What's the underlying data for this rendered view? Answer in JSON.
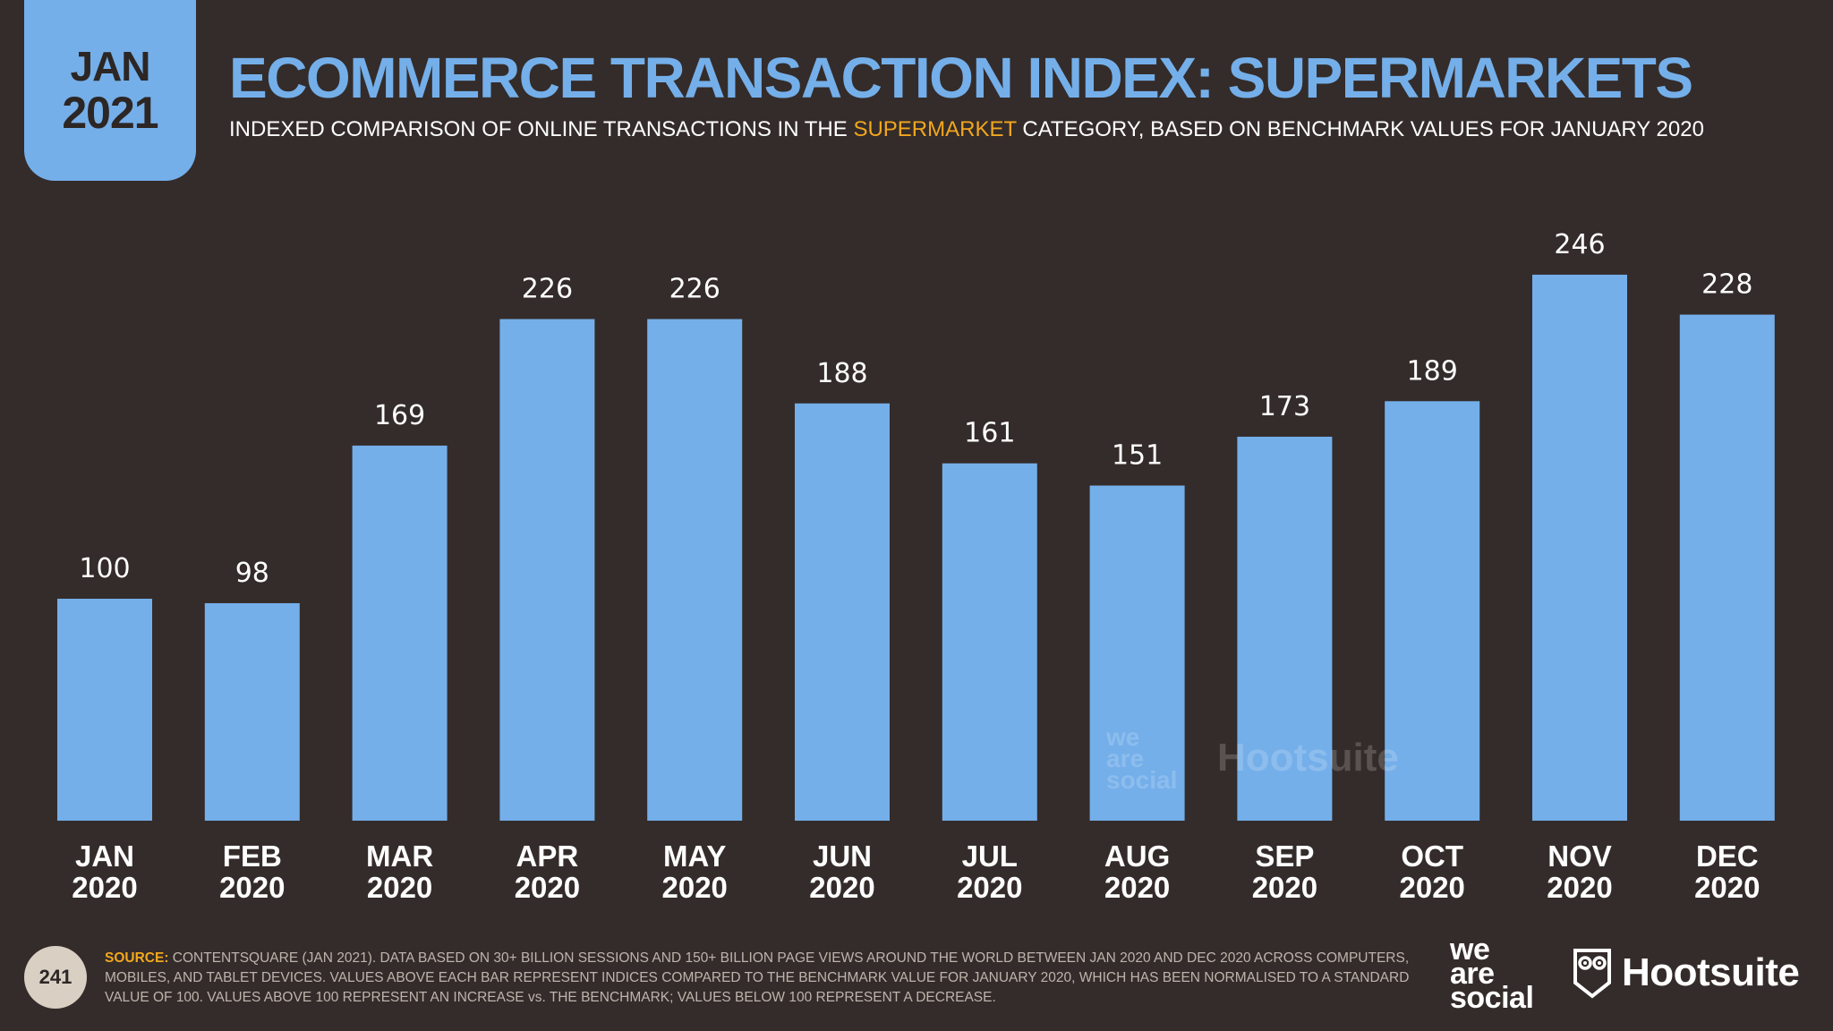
{
  "badge": {
    "month": "JAN",
    "year": "2021"
  },
  "header": {
    "title": "ECOMMERCE TRANSACTION INDEX: SUPERMARKETS",
    "subtitle_before": "INDEXED COMPARISON OF ONLINE TRANSACTIONS IN THE ",
    "subtitle_highlight": "SUPERMARKET",
    "subtitle_after": " CATEGORY, BASED ON BENCHMARK VALUES FOR JANUARY 2020"
  },
  "colors": {
    "background": "#342c2a",
    "bar": "#74afea",
    "title": "#74afea",
    "highlight": "#f2a71f",
    "text": "#ffffff"
  },
  "chart_data": {
    "type": "bar",
    "title": "ECOMMERCE TRANSACTION INDEX: SUPERMARKETS",
    "categories": [
      [
        "JAN",
        "2020"
      ],
      [
        "FEB",
        "2020"
      ],
      [
        "MAR",
        "2020"
      ],
      [
        "APR",
        "2020"
      ],
      [
        "MAY",
        "2020"
      ],
      [
        "JUN",
        "2020"
      ],
      [
        "JUL",
        "2020"
      ],
      [
        "AUG",
        "2020"
      ],
      [
        "SEP",
        "2020"
      ],
      [
        "OCT",
        "2020"
      ],
      [
        "NOV",
        "2020"
      ],
      [
        "DEC",
        "2020"
      ]
    ],
    "values": [
      100,
      98,
      169,
      226,
      226,
      188,
      161,
      151,
      173,
      189,
      246,
      228
    ],
    "ylim": [
      0,
      250
    ],
    "grid": false,
    "data_labels": true
  },
  "watermark": {
    "line1": "we",
    "line2": "are",
    "line3": "social",
    "brand": "Hootsuite"
  },
  "footer": {
    "page_number": "241",
    "source_label": "SOURCE:",
    "source_text": " CONTENTSQUARE (JAN 2021). DATA BASED ON 30+ BILLION SESSIONS AND 150+ BILLION PAGE VIEWS AROUND THE WORLD BETWEEN JAN 2020 AND DEC 2020 ACROSS COMPUTERS, MOBILES, AND TABLET DEVICES. VALUES ABOVE EACH BAR REPRESENT INDICES COMPARED TO THE BENCHMARK VALUE FOR JANUARY 2020, WHICH HAS BEEN NORMALISED TO A STANDARD VALUE OF 100. VALUES ABOVE 100 REPRESENT AN INCREASE vs. THE BENCHMARK; VALUES BELOW 100 REPRESENT A DECREASE.",
    "logo_was": [
      "we",
      "are",
      "social"
    ],
    "logo_hootsuite": "Hootsuite"
  }
}
